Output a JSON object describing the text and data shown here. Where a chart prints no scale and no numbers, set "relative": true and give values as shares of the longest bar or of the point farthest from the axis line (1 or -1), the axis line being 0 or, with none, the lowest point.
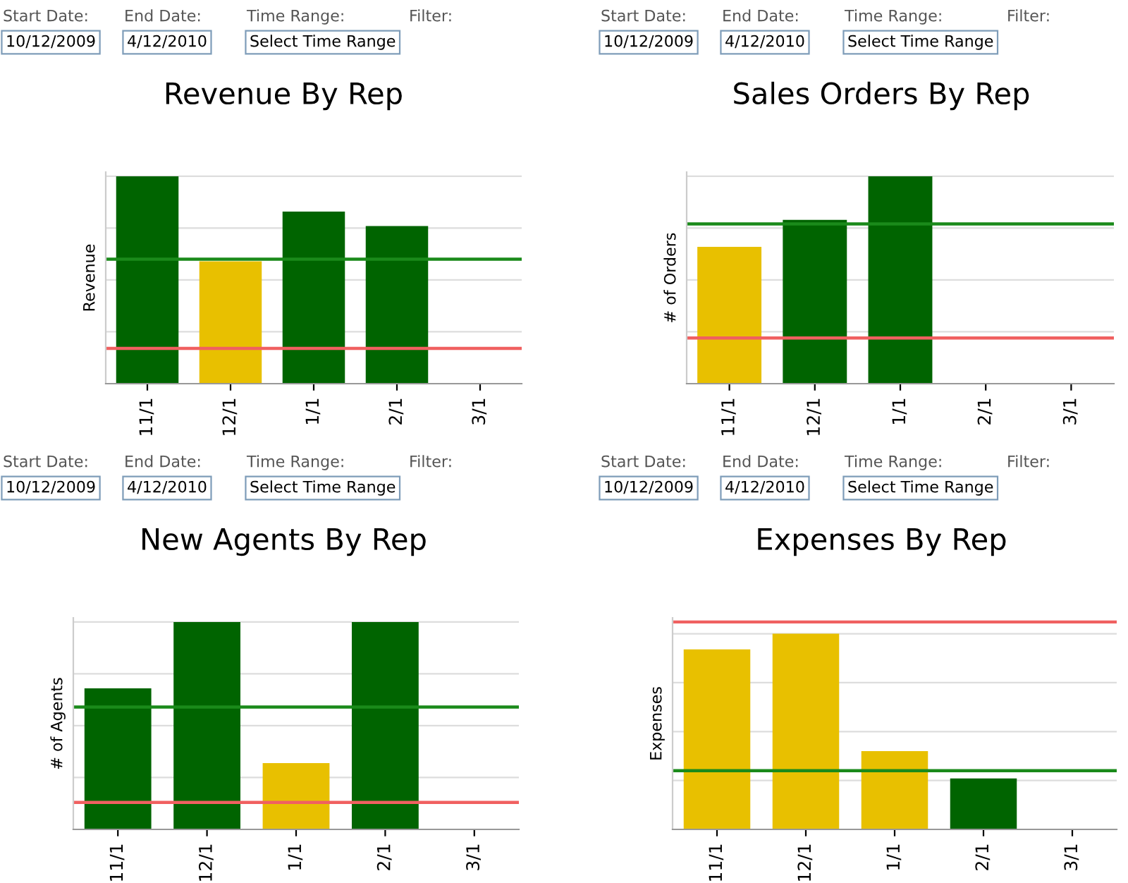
{
  "chart_data": [
    {
      "type": "bar",
      "title": "Revenue By Rep",
      "ylabel": "Revenue",
      "categories": [
        "11/1",
        "12/1",
        "1/1",
        "2/1",
        "3/1"
      ],
      "relative": true,
      "grid": "y",
      "values": [
        1,
        0.59,
        0.83,
        0.76,
        null
      ],
      "colors": [
        "#006400",
        "#e8c000",
        "#006400",
        "#006400",
        "#006400"
      ],
      "ref_lines": [
        {
          "axis": "y",
          "value": 0.6,
          "label": null,
          "color": "#1a8a1a"
        },
        {
          "axis": "y",
          "value": 0.17,
          "label": null,
          "color": "#f06060"
        }
      ],
      "annotations": [
        "Start Date:",
        "End Date:",
        "Time Range:",
        "Filter:",
        "10/12/2009",
        "4/12/2010",
        "Select Time Range"
      ]
    },
    {
      "type": "bar",
      "title": "Sales Orders By Rep",
      "ylabel": "# of Orders",
      "categories": [
        "11/1",
        "12/1",
        "1/1",
        "2/1",
        "3/1"
      ],
      "relative": true,
      "grid": "y",
      "values": [
        0.66,
        0.79,
        1,
        null,
        null
      ],
      "colors": [
        "#e8c000",
        "#006400",
        "#006400",
        "#006400",
        "#006400"
      ],
      "ref_lines": [
        {
          "axis": "y",
          "value": 0.77,
          "label": null,
          "color": "#1a8a1a"
        },
        {
          "axis": "y",
          "value": 0.22,
          "label": null,
          "color": "#f06060"
        }
      ],
      "annotations": [
        "Start Date:",
        "End Date:",
        "Time Range:",
        "Filter:",
        "10/12/2009",
        "4/12/2010",
        "Select Time Range"
      ]
    },
    {
      "type": "bar",
      "title": "New Agents By Rep",
      "ylabel": "# of Agents",
      "categories": [
        "11/1",
        "12/1",
        "1/1",
        "2/1",
        "3/1"
      ],
      "relative": true,
      "grid": "y",
      "values": [
        0.68,
        1,
        0.32,
        1,
        null
      ],
      "colors": [
        "#006400",
        "#006400",
        "#e8c000",
        "#006400",
        "#006400"
      ],
      "ref_lines": [
        {
          "axis": "y",
          "value": 0.59,
          "label": null,
          "color": "#1a8a1a"
        },
        {
          "axis": "y",
          "value": 0.13,
          "label": null,
          "color": "#f06060"
        }
      ],
      "annotations": [
        "Start Date:",
        "End Date:",
        "Time Range:",
        "Filter:",
        "10/12/2009",
        "4/12/2010",
        "Select Time Range"
      ]
    },
    {
      "type": "bar",
      "title": "Expenses By Rep",
      "ylabel": "Expenses",
      "categories": [
        "11/1",
        "12/1",
        "1/1",
        "2/1",
        "3/1"
      ],
      "relative": true,
      "grid": "y",
      "values": [
        0.92,
        1,
        0.4,
        0.26,
        null
      ],
      "colors": [
        "#e8c000",
        "#e8c000",
        "#e8c000",
        "#006400",
        "#006400"
      ],
      "ref_lines": [
        {
          "axis": "y",
          "value": 1.06,
          "label": null,
          "color": "#f06060"
        },
        {
          "axis": "y",
          "value": 0.3,
          "label": null,
          "color": "#1a8a1a"
        }
      ],
      "annotations": [
        "Start Date:",
        "End Date:",
        "Time Range:",
        "Filter:",
        "10/12/2009",
        "4/12/2010",
        "Select Time Range"
      ]
    }
  ]
}
